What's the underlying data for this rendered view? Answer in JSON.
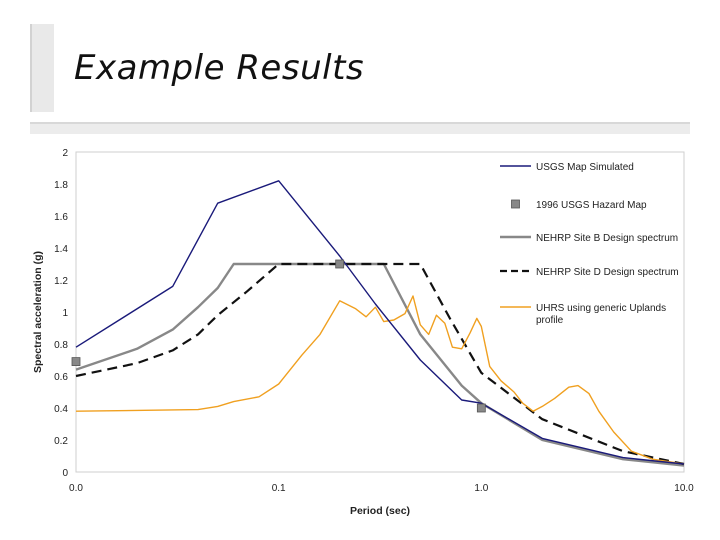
{
  "slide": {
    "title": "Example Results"
  },
  "chart_data": {
    "type": "line",
    "xlabel": "Period (sec)",
    "ylabel": "Spectral acceleration (g)",
    "x_scale": "log",
    "xlim": [
      0.01,
      10.0
    ],
    "ylim": [
      0,
      2
    ],
    "x_ticks": [
      0.01,
      0.1,
      1.0,
      10.0
    ],
    "x_tick_labels": [
      "0.0",
      "0.1",
      "1.0",
      "10.0"
    ],
    "y_ticks": [
      0,
      0.2,
      0.4,
      0.6,
      0.8,
      1,
      1.2,
      1.4,
      1.6,
      1.8,
      2
    ],
    "y_tick_labels": [
      "0",
      "0.2",
      "0.4",
      "0.6",
      "0.8",
      "1",
      "1.2",
      "1.4",
      "1.6",
      "1.8",
      "2"
    ],
    "grid": false,
    "legend_position": "right",
    "series": [
      {
        "name": "USGS Map Simulated",
        "style": "line",
        "color": "#1a1a7a",
        "points": [
          [
            0.01,
            0.78
          ],
          [
            0.03,
            1.16
          ],
          [
            0.05,
            1.68
          ],
          [
            0.1,
            1.82
          ],
          [
            0.2,
            1.35
          ],
          [
            0.3,
            1.05
          ],
          [
            0.5,
            0.7
          ],
          [
            0.8,
            0.45
          ],
          [
            1.0,
            0.43
          ],
          [
            2.0,
            0.21
          ],
          [
            5.0,
            0.09
          ],
          [
            10.0,
            0.05
          ]
        ]
      },
      {
        "name": "1996 USGS Hazard Map",
        "style": "marker",
        "color": "#888888",
        "points": [
          [
            0.01,
            0.69
          ],
          [
            0.2,
            1.3
          ],
          [
            1.0,
            0.4
          ]
        ]
      },
      {
        "name": "NEHRP Site B Design spectrum",
        "style": "line",
        "color": "#888888",
        "points": [
          [
            0.01,
            0.64
          ],
          [
            0.02,
            0.77
          ],
          [
            0.03,
            0.89
          ],
          [
            0.04,
            1.03
          ],
          [
            0.05,
            1.15
          ],
          [
            0.06,
            1.3
          ],
          [
            0.33,
            1.3
          ],
          [
            0.5,
            0.86
          ],
          [
            0.8,
            0.54
          ],
          [
            1.0,
            0.43
          ],
          [
            2.0,
            0.2
          ],
          [
            5.0,
            0.08
          ],
          [
            10.0,
            0.04
          ]
        ]
      },
      {
        "name": "NEHRP Site D Design spectrum",
        "style": "dashed",
        "color": "#111111",
        "points": [
          [
            0.01,
            0.6
          ],
          [
            0.02,
            0.68
          ],
          [
            0.03,
            0.76
          ],
          [
            0.04,
            0.86
          ],
          [
            0.05,
            0.98
          ],
          [
            0.07,
            1.13
          ],
          [
            0.1,
            1.3
          ],
          [
            0.5,
            1.3
          ],
          [
            0.7,
            0.96
          ],
          [
            1.0,
            0.62
          ],
          [
            2.0,
            0.33
          ],
          [
            5.0,
            0.13
          ],
          [
            10.0,
            0.05
          ]
        ]
      },
      {
        "name": "UHRS using generic Uplands profile",
        "style": "line",
        "color": "#f0a020",
        "points": [
          [
            0.01,
            0.38
          ],
          [
            0.04,
            0.39
          ],
          [
            0.05,
            0.41
          ],
          [
            0.06,
            0.44
          ],
          [
            0.08,
            0.47
          ],
          [
            0.1,
            0.55
          ],
          [
            0.13,
            0.73
          ],
          [
            0.16,
            0.86
          ],
          [
            0.2,
            1.07
          ],
          [
            0.24,
            1.02
          ],
          [
            0.27,
            0.97
          ],
          [
            0.3,
            1.03
          ],
          [
            0.33,
            0.94
          ],
          [
            0.37,
            0.95
          ],
          [
            0.42,
            0.99
          ],
          [
            0.46,
            1.1
          ],
          [
            0.5,
            0.92
          ],
          [
            0.55,
            0.86
          ],
          [
            0.6,
            0.98
          ],
          [
            0.66,
            0.93
          ],
          [
            0.72,
            0.78
          ],
          [
            0.8,
            0.77
          ],
          [
            0.88,
            0.87
          ],
          [
            0.95,
            0.96
          ],
          [
            1.0,
            0.91
          ],
          [
            1.1,
            0.66
          ],
          [
            1.25,
            0.57
          ],
          [
            1.45,
            0.5
          ],
          [
            1.6,
            0.43
          ],
          [
            1.8,
            0.38
          ],
          [
            2.0,
            0.41
          ],
          [
            2.3,
            0.46
          ],
          [
            2.7,
            0.53
          ],
          [
            3.0,
            0.54
          ],
          [
            3.4,
            0.49
          ],
          [
            3.8,
            0.38
          ],
          [
            4.5,
            0.25
          ],
          [
            5.5,
            0.13
          ],
          [
            7.0,
            0.08
          ],
          [
            10.0,
            0.05
          ]
        ]
      }
    ],
    "legend": [
      {
        "label": "USGS Map Simulated",
        "style": "line",
        "color": "#1a1a7a"
      },
      {
        "label": "1996 USGS Hazard Map",
        "style": "marker",
        "color": "#888888"
      },
      {
        "label": "NEHRP Site B Design spectrum",
        "style": "line",
        "color": "#888888"
      },
      {
        "label": "NEHRP Site D Design spectrum",
        "style": "dashed",
        "color": "#111111"
      },
      {
        "label_lines": [
          "UHRS using generic Uplands",
          "profile"
        ],
        "style": "line",
        "color": "#f0a020"
      }
    ]
  }
}
